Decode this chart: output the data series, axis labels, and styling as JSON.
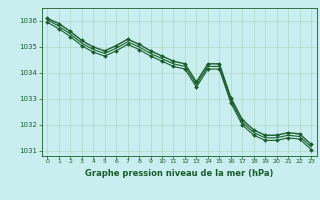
{
  "title": "Graphe pression niveau de la mer (hPa)",
  "background_color": "#c8eef0",
  "plot_bg_color": "#c8eef0",
  "grid_color": "#b0d8c8",
  "line_color": "#1a5c2a",
  "xlim": [
    -0.5,
    23.5
  ],
  "ylim": [
    1030.8,
    1036.5
  ],
  "yticks": [
    1031,
    1032,
    1033,
    1034,
    1035,
    1036
  ],
  "xticks": [
    0,
    1,
    2,
    3,
    4,
    5,
    6,
    7,
    8,
    9,
    10,
    11,
    12,
    13,
    14,
    15,
    16,
    17,
    18,
    19,
    20,
    21,
    22,
    23
  ],
  "series": [
    {
      "x": [
        0,
        1,
        2,
        3,
        4,
        5,
        6,
        7,
        8,
        9,
        10,
        11,
        12,
        13,
        14,
        15,
        16,
        17,
        18,
        19,
        20,
        21,
        22,
        23
      ],
      "y": [
        1036.1,
        1035.9,
        1035.6,
        1035.25,
        1035.0,
        1034.85,
        1035.05,
        1035.3,
        1035.1,
        1034.85,
        1034.65,
        1034.45,
        1034.35,
        1033.65,
        1034.35,
        1034.35,
        1033.05,
        1032.2,
        1031.8,
        1031.6,
        1031.6,
        1031.7,
        1031.65,
        1031.25
      ],
      "marker": "D",
      "markersize": 2.0,
      "linewidth": 1.0,
      "zorder": 3
    },
    {
      "x": [
        0,
        1,
        2,
        3,
        4,
        5,
        6,
        7,
        8,
        9,
        10,
        11,
        12,
        13,
        14,
        15,
        16,
        17,
        18,
        19,
        20,
        21,
        22,
        23
      ],
      "y": [
        1036.05,
        1035.8,
        1035.5,
        1035.15,
        1034.9,
        1034.75,
        1034.95,
        1035.2,
        1035.0,
        1034.75,
        1034.55,
        1034.35,
        1034.25,
        1033.55,
        1034.25,
        1034.25,
        1032.95,
        1032.1,
        1031.7,
        1031.5,
        1031.5,
        1031.6,
        1031.55,
        1031.15
      ],
      "marker": null,
      "markersize": 0,
      "linewidth": 0.8,
      "zorder": 2
    },
    {
      "x": [
        0,
        1,
        2,
        3,
        4,
        5,
        6,
        7,
        8,
        9,
        10,
        11,
        12,
        13,
        14,
        15,
        16,
        17,
        18,
        19,
        20,
        21,
        22,
        23
      ],
      "y": [
        1035.95,
        1035.7,
        1035.4,
        1035.05,
        1034.8,
        1034.65,
        1034.85,
        1035.1,
        1034.9,
        1034.65,
        1034.45,
        1034.25,
        1034.15,
        1033.45,
        1034.15,
        1034.15,
        1032.85,
        1032.0,
        1031.6,
        1031.4,
        1031.4,
        1031.5,
        1031.45,
        1031.05
      ],
      "marker": "D",
      "markersize": 2.0,
      "linewidth": 0.8,
      "zorder": 2
    }
  ]
}
